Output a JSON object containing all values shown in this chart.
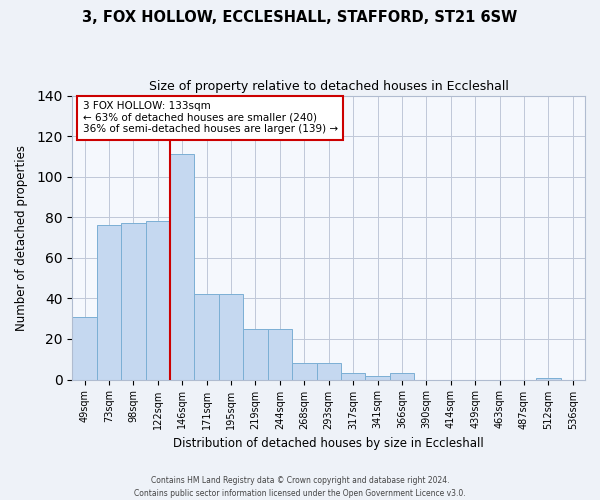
{
  "title": "3, FOX HOLLOW, ECCLESHALL, STAFFORD, ST21 6SW",
  "subtitle": "Size of property relative to detached houses in Eccleshall",
  "xlabel": "Distribution of detached houses by size in Eccleshall",
  "ylabel": "Number of detached properties",
  "bar_values": [
    31,
    76,
    77,
    78,
    111,
    42,
    42,
    25,
    25,
    8,
    8,
    3,
    2,
    3,
    0,
    0,
    0,
    0,
    0,
    1,
    0
  ],
  "tick_labels": [
    "49sqm",
    "73sqm",
    "98sqm",
    "122sqm",
    "146sqm",
    "171sqm",
    "195sqm",
    "219sqm",
    "244sqm",
    "268sqm",
    "293sqm",
    "317sqm",
    "341sqm",
    "366sqm",
    "390sqm",
    "414sqm",
    "439sqm",
    "463sqm",
    "487sqm",
    "512sqm",
    "536sqm"
  ],
  "bar_color": "#c5d8f0",
  "bar_edge_color": "#7bafd4",
  "vertical_line_x": 4,
  "vertical_line_color": "#cc0000",
  "ylim": [
    0,
    140
  ],
  "annotation_title": "3 FOX HOLLOW: 133sqm",
  "annotation_line1": "← 63% of detached houses are smaller (240)",
  "annotation_line2": "36% of semi-detached houses are larger (139) →",
  "annotation_box_color": "#cc0000",
  "footer_line1": "Contains HM Land Registry data © Crown copyright and database right 2024.",
  "footer_line2": "Contains public sector information licensed under the Open Government Licence v3.0.",
  "background_color": "#eef2f8",
  "plot_background_color": "#f5f8fd"
}
